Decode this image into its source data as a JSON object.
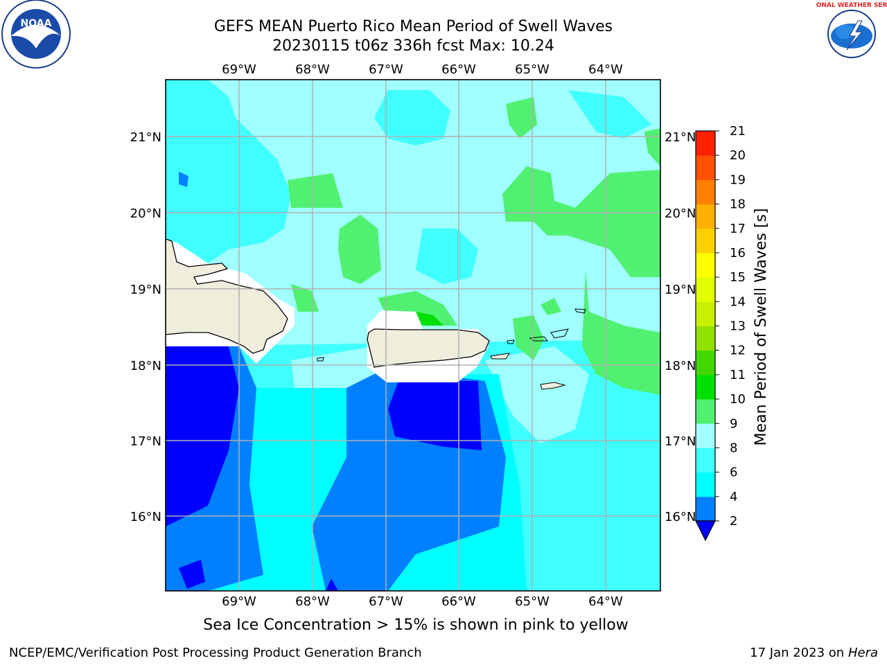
{
  "header": {
    "title_line1": "GEFS MEAN Puerto Rico Mean Period of Swell Waves",
    "title_line2": "20230115 t06z 336h fcst   Max: 10.24"
  },
  "logos": {
    "left": {
      "name": "noaa-logo",
      "text": "NOAA"
    },
    "right": {
      "name": "nws-logo",
      "text": "NATIONAL WEATHER SERVICE"
    }
  },
  "map": {
    "lon_labels": [
      "69°W",
      "68°W",
      "67°W",
      "66°W",
      "65°W",
      "64°W"
    ],
    "lat_labels": [
      "21°N",
      "20°N",
      "19°N",
      "18°N",
      "17°N",
      "16°N"
    ]
  },
  "colorbar": {
    "label": "Mean Period of Swell Waves [s]",
    "ticks": [
      "2",
      "4",
      "6",
      "8",
      "9",
      "10",
      "11",
      "12",
      "13",
      "14",
      "15",
      "16",
      "17",
      "18",
      "19",
      "20",
      "21"
    ],
    "colors": [
      "#0000ff",
      "#0080ff",
      "#00ffff",
      "#40ffff",
      "#a0ffff",
      "#50f070",
      "#00e000",
      "#40d800",
      "#90e000",
      "#c8f000",
      "#e0ff00",
      "#ffff00",
      "#ffd000",
      "#ffb000",
      "#ff8000",
      "#ff5000",
      "#ff2000",
      "#ff0000"
    ],
    "extend": "min"
  },
  "caption": "Sea Ice Concentration > 15% is shown in pink to yellow",
  "footer": {
    "left": "NCEP/EMC/Verification Post Processing Product Generation Branch",
    "right_date": "17 Jan 2023 on",
    "right_host": "Hera"
  },
  "colors": {
    "land": "#efeedd",
    "grid": "#b0b0b0",
    "period_2_4": "#0000ff",
    "period_4_6": "#0080ff",
    "period_6_8": "#00ffff",
    "period_8_9": "#40ffff",
    "period_9_10": "#a0ffff",
    "period_10_11": "#50f070"
  }
}
